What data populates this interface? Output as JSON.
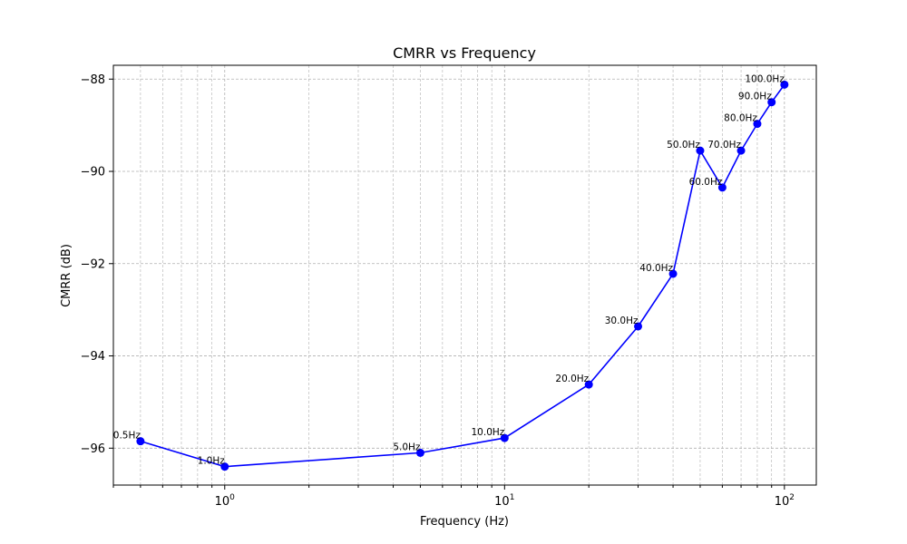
{
  "chart_data": {
    "type": "line",
    "title": "CMRR vs Frequency",
    "xlabel": "Frequency (Hz)",
    "ylabel": "CMRR (dB)",
    "xscale": "log",
    "xlim": [
      0.4,
      130
    ],
    "ylim": [
      -96.8,
      -87.7
    ],
    "grid": true,
    "x_ticks": [
      {
        "base": "10",
        "exp": "0",
        "value": 1
      },
      {
        "base": "10",
        "exp": "1",
        "value": 10
      },
      {
        "base": "10",
        "exp": "2",
        "value": 100
      }
    ],
    "y_ticks": [
      {
        "label": "−96",
        "value": -96
      },
      {
        "label": "−94",
        "value": -94
      },
      {
        "label": "−92",
        "value": -92
      },
      {
        "label": "−90",
        "value": -90
      },
      {
        "label": "−88",
        "value": -88
      }
    ],
    "color": "#0000ff",
    "points": [
      {
        "x": 0.5,
        "y": -95.85,
        "label": "0.5Hz"
      },
      {
        "x": 1,
        "y": -96.4,
        "label": "1.0Hz"
      },
      {
        "x": 5,
        "y": -96.1,
        "label": "5.0Hz"
      },
      {
        "x": 10,
        "y": -95.78,
        "label": "10.0Hz"
      },
      {
        "x": 20,
        "y": -94.62,
        "label": "20.0Hz"
      },
      {
        "x": 30,
        "y": -93.36,
        "label": "30.0Hz"
      },
      {
        "x": 40,
        "y": -92.22,
        "label": "40.0Hz"
      },
      {
        "x": 50,
        "y": -89.55,
        "label": "50.0Hz"
      },
      {
        "x": 60,
        "y": -90.35,
        "label": "60.0Hz"
      },
      {
        "x": 70,
        "y": -89.55,
        "label": "70.0Hz"
      },
      {
        "x": 80,
        "y": -88.97,
        "label": "80.0Hz"
      },
      {
        "x": 90,
        "y": -88.5,
        "label": "90.0Hz"
      },
      {
        "x": 100,
        "y": -88.12,
        "label": "100.0Hz"
      }
    ]
  }
}
